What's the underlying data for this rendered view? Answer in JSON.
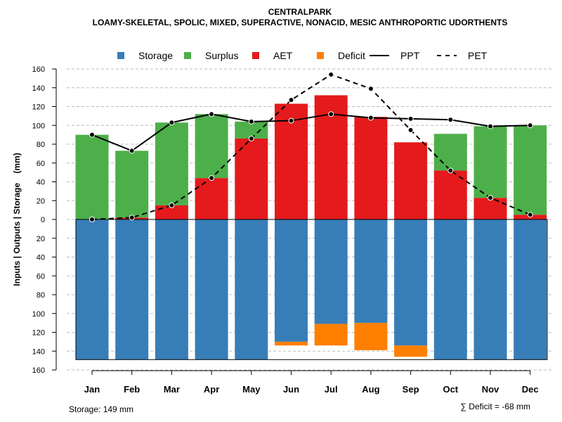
{
  "chart_data": {
    "type": "bar",
    "title": "CENTRALPARK",
    "subtitle": "LOAMY-SKELETAL, SPOLIC, MIXED, SUPERACTIVE, NONACID, MESIC ANTHROPORTIC UDORTHENTS",
    "ylabel": "Inputs | Outputs | Storage    (mm)",
    "ylim": [
      -160,
      160
    ],
    "yticks": [
      160,
      140,
      120,
      100,
      80,
      60,
      40,
      20,
      0,
      20,
      40,
      60,
      80,
      100,
      120,
      140,
      160
    ],
    "grid": true,
    "legend_placement": "top",
    "categories": [
      "Jan",
      "Feb",
      "Mar",
      "Apr",
      "May",
      "Jun",
      "Jul",
      "Aug",
      "Sep",
      "Oct",
      "Nov",
      "Dec"
    ],
    "legend": [
      {
        "name": "Storage",
        "kind": "box",
        "color": "#377EB8"
      },
      {
        "name": "Surplus",
        "kind": "box",
        "color": "#4DAF4A"
      },
      {
        "name": "AET",
        "kind": "box",
        "color": "#E41A1C"
      },
      {
        "name": "Deficit",
        "kind": "box",
        "color": "#FF7F00"
      },
      {
        "name": "PPT",
        "kind": "line",
        "color": "#000000"
      },
      {
        "name": "PET",
        "kind": "dash",
        "color": "#000000"
      }
    ],
    "series": [
      {
        "name": "Storage",
        "values": [
          149,
          149,
          149,
          149,
          149,
          130,
          111,
          110,
          134,
          149,
          149,
          149
        ]
      },
      {
        "name": "Surplus",
        "values": [
          90,
          71,
          88,
          68,
          18,
          0,
          0,
          0,
          0,
          39,
          76,
          95
        ]
      },
      {
        "name": "AET",
        "values": [
          0,
          2,
          15,
          44,
          86,
          123,
          132,
          109,
          82,
          52,
          23,
          5
        ]
      },
      {
        "name": "Deficit",
        "values": [
          0,
          0,
          0,
          0,
          0,
          4,
          23,
          29,
          12,
          0,
          0,
          0
        ]
      },
      {
        "name": "PPT",
        "values": [
          90,
          73,
          103,
          112,
          104,
          105,
          112,
          108,
          107,
          106,
          99,
          100
        ]
      },
      {
        "name": "PET",
        "values": [
          0,
          2,
          15,
          44,
          86,
          127,
          154,
          139,
          95,
          52,
          23,
          5
        ]
      }
    ],
    "storage_capacity": 149,
    "footer_left": "Storage: 149 mm",
    "footer_right": "∑ Deficit = -68 mm"
  }
}
